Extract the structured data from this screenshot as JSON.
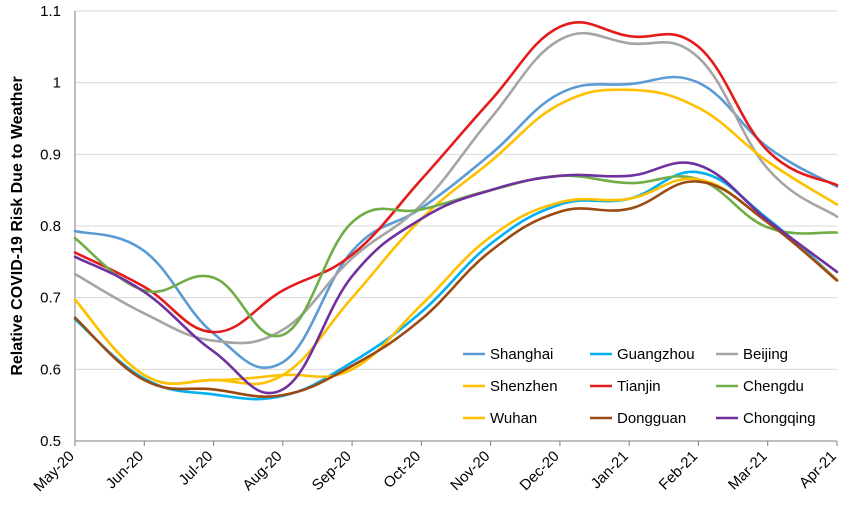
{
  "chart_data": {
    "type": "line",
    "title": "",
    "xlabel": "",
    "ylabel": "Relative COVID-19 Risk Due to Weather",
    "ylim": [
      0.5,
      1.1
    ],
    "yticks": [
      "0.5",
      "0.6",
      "0.7",
      "0.8",
      "0.9",
      "1",
      "1.1"
    ],
    "grid": true,
    "legend_position": "bottom-right",
    "categories": [
      "May-20",
      "Jun-20",
      "Jul-20",
      "Aug-20",
      "Sep-20",
      "Oct-20",
      "Nov-20",
      "Dec-20",
      "Jan-21",
      "Feb-21",
      "Mar-21",
      "Apr-21"
    ],
    "series": [
      {
        "name": "Shanghai",
        "color": "#5b9bd5",
        "values": [
          0.793,
          0.765,
          0.65,
          0.61,
          0.765,
          0.825,
          0.9,
          0.985,
          0.998,
          1.0,
          0.91,
          0.855
        ]
      },
      {
        "name": "Guangzhou",
        "color": "#00b0f0",
        "values": [
          0.67,
          0.587,
          0.565,
          0.563,
          0.61,
          0.68,
          0.775,
          0.83,
          0.838,
          0.875,
          0.81,
          0.725
        ]
      },
      {
        "name": "Beijing",
        "color": "#a5a5a5",
        "values": [
          0.733,
          0.678,
          0.64,
          0.655,
          0.755,
          0.83,
          0.95,
          1.06,
          1.055,
          1.035,
          0.88,
          0.813
        ]
      },
      {
        "name": "Shenzhen",
        "color": "#ffc000",
        "values": [
          0.697,
          0.592,
          0.585,
          0.592,
          0.7,
          0.81,
          0.89,
          0.97,
          0.99,
          0.965,
          0.89,
          0.83
        ]
      },
      {
        "name": "Tianjin",
        "color": "#e41b1b",
        "values": [
          0.763,
          0.715,
          0.652,
          0.71,
          0.76,
          0.865,
          0.975,
          1.078,
          1.065,
          1.05,
          0.905,
          0.857
        ]
      },
      {
        "name": "Chengdu",
        "color": "#70ad47",
        "values": [
          0.783,
          0.71,
          0.728,
          0.648,
          0.805,
          0.823,
          0.85,
          0.87,
          0.86,
          0.865,
          0.798,
          0.791
        ]
      },
      {
        "name": "Wuhan",
        "color": "#ffc000",
        "values": [
          0.697,
          0.592,
          0.585,
          0.592,
          0.6,
          0.69,
          0.785,
          0.833,
          0.838,
          0.865,
          0.805,
          0.725
        ]
      },
      {
        "name": "Dongguan",
        "color": "#9c4a12",
        "values": [
          0.672,
          0.585,
          0.572,
          0.564,
          0.605,
          0.67,
          0.765,
          0.82,
          0.824,
          0.862,
          0.805,
          0.724
        ]
      },
      {
        "name": "Chongqing",
        "color": "#7030a0",
        "values": [
          0.757,
          0.708,
          0.625,
          0.572,
          0.73,
          0.81,
          0.85,
          0.87,
          0.87,
          0.885,
          0.808,
          0.736
        ]
      }
    ]
  }
}
